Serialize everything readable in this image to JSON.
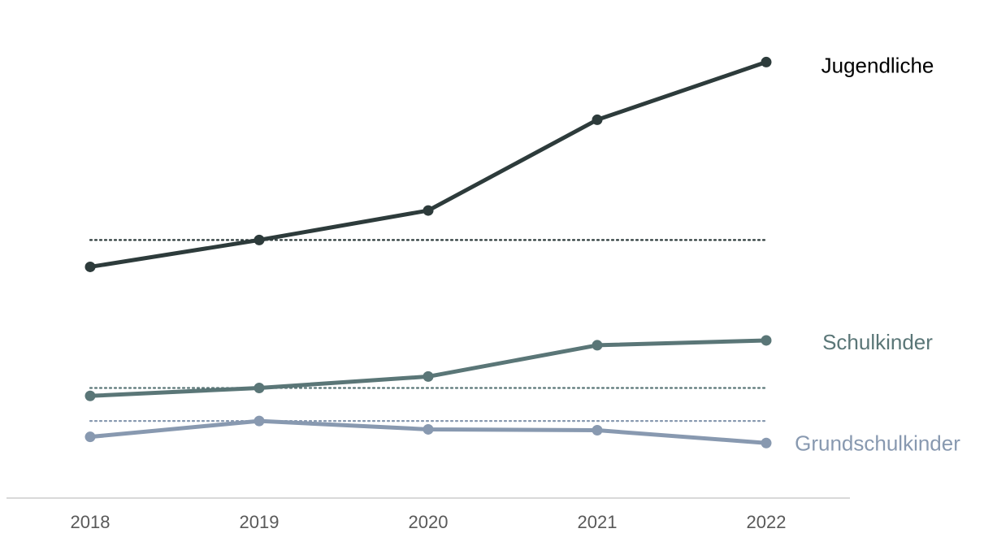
{
  "chart_data": {
    "type": "line",
    "title": "",
    "xlabel": "",
    "ylabel": "",
    "x": [
      "2018",
      "2019",
      "2020",
      "2021",
      "2022"
    ],
    "ylim": [
      0,
      100
    ],
    "grid": false,
    "legend": "inline labels at right end of each line",
    "series": [
      {
        "name": "Jugendliche",
        "color": "#2d3b3b",
        "values": [
          52.5,
          58.6,
          65.3,
          85.9,
          99.0
        ],
        "reference": 58.6
      },
      {
        "name": "Schulkinder",
        "color": "#5a7677",
        "values": [
          23.2,
          25.0,
          27.6,
          34.7,
          35.8
        ],
        "reference": 25.0
      },
      {
        "name": "Grundschulkinder",
        "color": "#8899b0",
        "values": [
          13.9,
          17.5,
          15.6,
          15.4,
          12.5
        ],
        "reference": 17.5
      }
    ]
  }
}
